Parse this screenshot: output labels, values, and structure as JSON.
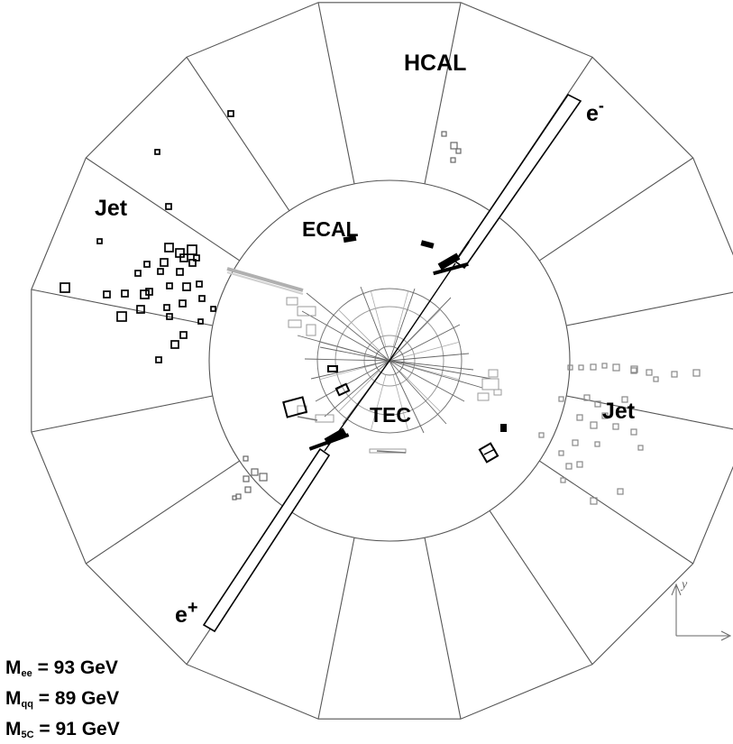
{
  "labels": {
    "hcal": "HCAL",
    "ecal": "ECAL",
    "tec": "TEC",
    "jet_left": "Jet",
    "jet_right": "Jet",
    "electron_base": "e",
    "electron_sup": "-",
    "positron_base": "e",
    "positron_sup": "+"
  },
  "masses": [
    {
      "base": "M",
      "sub": "ee",
      "text": " = 93 GeV"
    },
    {
      "base": "M",
      "sub": "qq",
      "text": " = 89 GeV"
    },
    {
      "base": "M",
      "sub": "5C",
      "text": " = 91 GeV"
    }
  ],
  "axis": {
    "y_label": "y"
  },
  "colors": {
    "line": "#000000",
    "gray": "#9a9a9a",
    "light_gray": "#b8b8b8",
    "background": "#ffffff"
  }
}
